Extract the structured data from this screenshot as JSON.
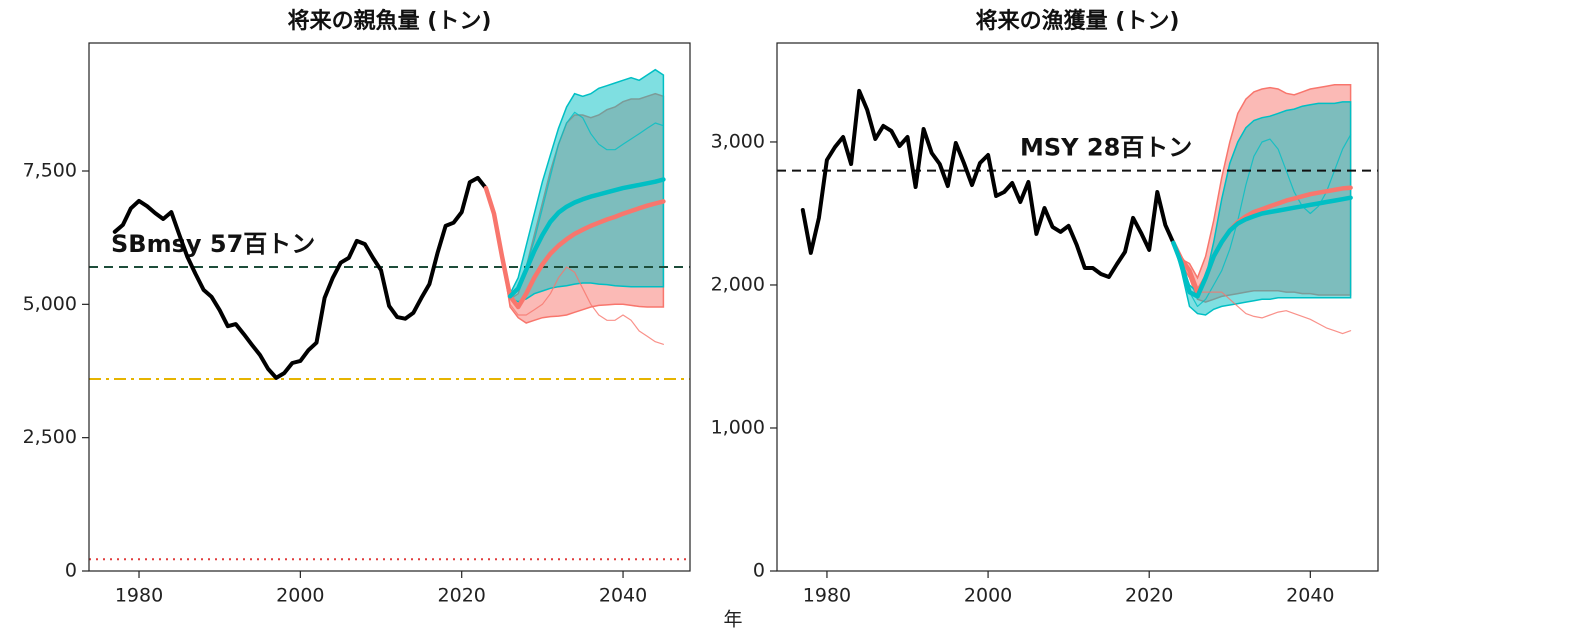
{
  "x_label": "年",
  "chart_data": [
    {
      "type": "line",
      "title": "将来の親魚量 (トン)",
      "xlim": [
        1973.8,
        2048.3
      ],
      "xticks": [
        1980,
        2000,
        2020,
        2040
      ],
      "ylim": [
        0,
        9900
      ],
      "yticks": [
        0,
        {
          "value": 2500,
          "label": "2,500"
        },
        {
          "value": 5000,
          "label": "5,000"
        },
        {
          "value": 7500,
          "label": "7,500"
        }
      ],
      "x": [
        1977,
        1978,
        1979,
        1980,
        1981,
        1982,
        1983,
        1984,
        1985,
        1986,
        1987,
        1988,
        1989,
        1990,
        1991,
        1992,
        1993,
        1994,
        1995,
        1996,
        1997,
        1998,
        1999,
        2000,
        2001,
        2002,
        2003,
        2004,
        2005,
        2006,
        2007,
        2008,
        2009,
        2010,
        2011,
        2012,
        2013,
        2014,
        2015,
        2016,
        2017,
        2018,
        2019,
        2020,
        2021,
        2022,
        2023
      ],
      "series": [
        {
          "color": "#000000",
          "values": [
            6360,
            6490,
            6800,
            6940,
            6840,
            6710,
            6600,
            6730,
            6300,
            5890,
            5570,
            5270,
            5140,
            4890,
            4590,
            4630,
            4440,
            4240,
            4050,
            3790,
            3620,
            3710,
            3900,
            3940,
            4140,
            4280,
            5120,
            5490,
            5780,
            5870,
            6190,
            6130,
            5870,
            5640,
            4970,
            4760,
            4730,
            4840,
            5120,
            5380,
            5960,
            6470,
            6530,
            6730,
            7290,
            7370,
            7180
          ]
        }
      ],
      "projection_x": [
        2023,
        2024,
        2025,
        2026,
        2027,
        2028,
        2029,
        2030,
        2031,
        2032,
        2033,
        2034,
        2035,
        2036,
        2037,
        2038,
        2039,
        2040,
        2041,
        2042,
        2043,
        2044,
        2045
      ],
      "bands": [
        {
          "color": "#f8766d",
          "lower": [
            7180,
            6700,
            5900,
            4950,
            4750,
            4650,
            4700,
            4750,
            4770,
            4780,
            4800,
            4850,
            4900,
            4950,
            4980,
            4990,
            5000,
            5000,
            4980,
            4960,
            4950,
            4950,
            4950
          ],
          "upper": [
            7180,
            6700,
            5900,
            5100,
            5200,
            5700,
            6300,
            6900,
            7500,
            8000,
            8400,
            8550,
            8550,
            8500,
            8550,
            8650,
            8700,
            8800,
            8850,
            8850,
            8900,
            8950,
            8900
          ]
        },
        {
          "color": "#00bfc4",
          "lower": [
            null,
            null,
            null,
            5100,
            5050,
            5100,
            5200,
            5250,
            5300,
            5330,
            5350,
            5380,
            5400,
            5400,
            5380,
            5370,
            5350,
            5340,
            5330,
            5330,
            5330,
            5330,
            5330
          ],
          "upper": [
            null,
            null,
            null,
            5200,
            5500,
            6100,
            6700,
            7300,
            7800,
            8300,
            8700,
            8950,
            8900,
            8950,
            9050,
            9100,
            9150,
            9200,
            9250,
            9200,
            9300,
            9400,
            9300
          ]
        }
      ],
      "samples": [
        {
          "color": "#00bfc4",
          "values": [
            null,
            null,
            null,
            5150,
            5300,
            5700,
            6200,
            6800,
            7400,
            8000,
            8400,
            8600,
            8500,
            8200,
            8000,
            7900,
            7900,
            8000,
            8100,
            8200,
            8300,
            8400,
            8350
          ]
        },
        {
          "color": "#f8766d",
          "values": [
            7180,
            6700,
            5900,
            5000,
            4800,
            4800,
            4900,
            5000,
            5200,
            5500,
            5700,
            5600,
            5300,
            5000,
            4800,
            4700,
            4700,
            4800,
            4700,
            4500,
            4400,
            4300,
            4250
          ]
        }
      ],
      "medians": [
        {
          "color": "#f8766d",
          "values": [
            7180,
            6700,
            5900,
            5150,
            4950,
            5200,
            5500,
            5750,
            5950,
            6100,
            6220,
            6320,
            6400,
            6470,
            6530,
            6590,
            6640,
            6700,
            6750,
            6800,
            6850,
            6890,
            6930
          ]
        },
        {
          "color": "#00bfc4",
          "values": [
            null,
            null,
            null,
            5150,
            5300,
            5650,
            6000,
            6300,
            6550,
            6720,
            6830,
            6910,
            6970,
            7020,
            7060,
            7100,
            7140,
            7180,
            7210,
            7240,
            7270,
            7300,
            7340
          ]
        }
      ],
      "hlines": [
        {
          "value": 5700,
          "color": "#1d4d3a",
          "style": "dashed",
          "label": "SBmsy 57百トン"
        },
        {
          "value": 3600,
          "color": "#e6b400",
          "style": "dashdot"
        },
        {
          "value": 220,
          "color": "#e03c3c",
          "style": "dotted"
        }
      ]
    },
    {
      "type": "line",
      "title": "将来の漁獲量 (トン)",
      "xlim": [
        1973.8,
        2048.4
      ],
      "xticks": [
        1980,
        2000,
        2020,
        2040
      ],
      "ylim": [
        0,
        3692
      ],
      "yticks": [
        0,
        {
          "value": 1000,
          "label": "1,000"
        },
        {
          "value": 2000,
          "label": "2,000"
        },
        {
          "value": 3000,
          "label": "3,000"
        }
      ],
      "x": [
        1977,
        1978,
        1979,
        1980,
        1981,
        1982,
        1983,
        1984,
        1985,
        1986,
        1987,
        1988,
        1989,
        1990,
        1991,
        1992,
        1993,
        1994,
        1995,
        1996,
        1997,
        1998,
        1999,
        2000,
        2001,
        2002,
        2003,
        2004,
        2005,
        2006,
        2007,
        2008,
        2009,
        2010,
        2011,
        2012,
        2013,
        2014,
        2015,
        2016,
        2017,
        2018,
        2019,
        2020,
        2021,
        2022,
        2023
      ],
      "series": [
        {
          "color": "#000000",
          "values": [
            2524,
            2224,
            2469,
            2874,
            2965,
            3035,
            2846,
            3357,
            3224,
            3021,
            3112,
            3077,
            2972,
            3035,
            2685,
            3091,
            2923,
            2846,
            2692,
            2993,
            2853,
            2699,
            2853,
            2909,
            2622,
            2650,
            2713,
            2580,
            2720,
            2357,
            2538,
            2406,
            2371,
            2413,
            2280,
            2119,
            2119,
            2077,
            2056,
            2147,
            2231,
            2469,
            2364,
            2245,
            2650,
            2420,
            2294
          ]
        }
      ],
      "projection_x": [
        2023,
        2024,
        2025,
        2026,
        2027,
        2028,
        2029,
        2030,
        2031,
        2032,
        2033,
        2034,
        2035,
        2036,
        2037,
        2038,
        2039,
        2040,
        2041,
        2042,
        2043,
        2044,
        2045
      ],
      "bands": [
        {
          "color": "#f8766d",
          "lower": [
            2294,
            2150,
            2050,
            1900,
            1880,
            1900,
            1920,
            1930,
            1940,
            1950,
            1960,
            1960,
            1960,
            1960,
            1950,
            1950,
            1940,
            1940,
            1930,
            1930,
            1930,
            1930,
            1930
          ],
          "upper": [
            2294,
            2180,
            2150,
            2050,
            2200,
            2450,
            2750,
            3000,
            3200,
            3300,
            3350,
            3370,
            3380,
            3370,
            3340,
            3330,
            3350,
            3370,
            3380,
            3390,
            3400,
            3400,
            3400
          ]
        },
        {
          "color": "#00bfc4",
          "lower": [
            2294,
            2100,
            1850,
            1800,
            1790,
            1830,
            1850,
            1860,
            1870,
            1880,
            1890,
            1900,
            1900,
            1910,
            1910,
            1910,
            1910,
            1910,
            1910,
            1910,
            1910,
            1910,
            1910
          ],
          "upper": [
            2294,
            2150,
            2000,
            1950,
            2050,
            2300,
            2600,
            2850,
            3000,
            3100,
            3150,
            3170,
            3180,
            3200,
            3220,
            3230,
            3250,
            3260,
            3270,
            3270,
            3270,
            3280,
            3280
          ]
        }
      ],
      "samples": [
        {
          "color": "#00bfc4",
          "values": [
            2294,
            2150,
            1950,
            1850,
            1900,
            2000,
            2100,
            2250,
            2450,
            2700,
            2900,
            3000,
            3020,
            2950,
            2800,
            2650,
            2550,
            2500,
            2550,
            2650,
            2800,
            2950,
            3050
          ]
        },
        {
          "color": "#f8766d",
          "values": [
            2294,
            2180,
            2100,
            1950,
            1950,
            1950,
            1950,
            1900,
            1850,
            1800,
            1780,
            1770,
            1790,
            1810,
            1820,
            1800,
            1780,
            1760,
            1730,
            1700,
            1680,
            1660,
            1680
          ]
        }
      ],
      "medians": [
        {
          "color": "#f8766d",
          "values": [
            2294,
            2180,
            2100,
            1950,
            2050,
            2200,
            2300,
            2380,
            2440,
            2480,
            2510,
            2530,
            2550,
            2570,
            2590,
            2605,
            2620,
            2635,
            2645,
            2655,
            2665,
            2675,
            2680
          ]
        },
        {
          "color": "#00bfc4",
          "values": [
            2294,
            2150,
            1950,
            1920,
            2050,
            2200,
            2300,
            2380,
            2430,
            2460,
            2480,
            2500,
            2510,
            2520,
            2530,
            2540,
            2550,
            2560,
            2570,
            2580,
            2590,
            2600,
            2610
          ]
        }
      ],
      "hlines": [
        {
          "value": 2800,
          "color": "#111111",
          "style": "dashed",
          "label": "MSY 28百トン"
        }
      ]
    }
  ]
}
